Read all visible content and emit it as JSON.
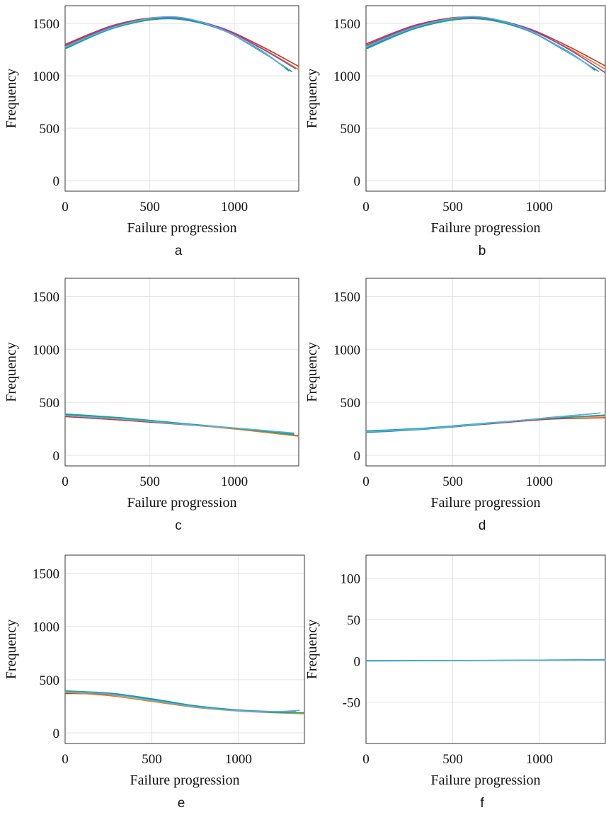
{
  "chart_data": [
    {
      "panel": "a",
      "type": "line",
      "xlabel": "Failure progression",
      "ylabel": "Frequency",
      "caption": "a",
      "xlim": [
        0,
        1380
      ],
      "ylim": [
        -100,
        1670
      ],
      "xticks": [
        0,
        500,
        1000
      ],
      "yticks": [
        0,
        500,
        1000,
        1500
      ],
      "grid": true,
      "series": [
        {
          "color": "#c0392b",
          "x": [
            0,
            300,
            600,
            900,
            1150,
            1380
          ],
          "values": [
            1300,
            1490,
            1560,
            1470,
            1290,
            1090
          ]
        },
        {
          "color": "#e67e22",
          "x": [
            0,
            300,
            600,
            900,
            1150,
            1380
          ],
          "values": [
            1285,
            1478,
            1552,
            1462,
            1275,
            1060
          ]
        },
        {
          "color": "#2e86c1",
          "x": [
            0,
            300,
            620,
            900,
            1150,
            1320
          ],
          "values": [
            1268,
            1470,
            1545,
            1455,
            1250,
            1050
          ]
        },
        {
          "color": "#17a589",
          "x": [
            0,
            300,
            620,
            900,
            1150,
            1340
          ],
          "values": [
            1258,
            1462,
            1548,
            1458,
            1240,
            1040
          ]
        },
        {
          "color": "#8e44ad",
          "x": [
            0,
            300,
            620,
            900,
            1150,
            1360
          ],
          "values": [
            1290,
            1482,
            1558,
            1470,
            1270,
            1070
          ]
        },
        {
          "color": "#5dade2",
          "x": [
            0,
            300,
            620,
            900,
            1150,
            1300
          ],
          "values": [
            1275,
            1472,
            1565,
            1460,
            1245,
            1080
          ]
        }
      ]
    },
    {
      "panel": "b",
      "type": "line",
      "xlabel": "Failure progression",
      "ylabel": "Frequency",
      "caption": "b",
      "xlim": [
        0,
        1380
      ],
      "ylim": [
        -100,
        1670
      ],
      "xticks": [
        0,
        500,
        1000
      ],
      "yticks": [
        0,
        500,
        1000,
        1500
      ],
      "grid": true,
      "series": [
        {
          "color": "#c0392b",
          "x": [
            0,
            300,
            600,
            900,
            1150,
            1380
          ],
          "values": [
            1305,
            1492,
            1562,
            1472,
            1295,
            1095
          ]
        },
        {
          "color": "#e67e22",
          "x": [
            0,
            300,
            600,
            900,
            1150,
            1380
          ],
          "values": [
            1288,
            1480,
            1554,
            1464,
            1278,
            1065
          ]
        },
        {
          "color": "#2e86c1",
          "x": [
            0,
            300,
            620,
            900,
            1150,
            1320
          ],
          "values": [
            1266,
            1468,
            1546,
            1452,
            1248,
            1055
          ]
        },
        {
          "color": "#17a589",
          "x": [
            0,
            300,
            620,
            900,
            1150,
            1340
          ],
          "values": [
            1256,
            1460,
            1548,
            1456,
            1238,
            1045
          ]
        },
        {
          "color": "#8e44ad",
          "x": [
            0,
            300,
            620,
            900,
            1150,
            1380
          ],
          "values": [
            1292,
            1484,
            1560,
            1472,
            1272,
            1030
          ]
        },
        {
          "color": "#5dade2",
          "x": [
            0,
            300,
            620,
            900,
            1150,
            1300
          ],
          "values": [
            1278,
            1474,
            1566,
            1462,
            1244,
            1082
          ]
        }
      ]
    },
    {
      "panel": "c",
      "type": "line",
      "xlabel": "Failure progression",
      "ylabel": "Frequency",
      "caption": "c",
      "xlim": [
        0,
        1380
      ],
      "ylim": [
        -100,
        1670
      ],
      "xticks": [
        0,
        500,
        1000
      ],
      "yticks": [
        0,
        500,
        1000,
        1500
      ],
      "grid": true,
      "series": [
        {
          "color": "#c0392b",
          "x": [
            0,
            350,
            700,
            1050,
            1380
          ],
          "values": [
            365,
            330,
            290,
            245,
            185
          ]
        },
        {
          "color": "#e67e22",
          "x": [
            0,
            350,
            700,
            1050,
            1380
          ],
          "values": [
            380,
            345,
            295,
            240,
            180
          ]
        },
        {
          "color": "#2e86c1",
          "x": [
            0,
            350,
            700,
            1050,
            1350
          ],
          "values": [
            385,
            350,
            300,
            250,
            205
          ]
        },
        {
          "color": "#17a589",
          "x": [
            0,
            350,
            700,
            1050,
            1350
          ],
          "values": [
            390,
            352,
            298,
            248,
            195
          ]
        },
        {
          "color": "#5dade2",
          "x": [
            0,
            350,
            700,
            1050,
            1350
          ],
          "values": [
            375,
            340,
            292,
            252,
            210
          ]
        }
      ]
    },
    {
      "panel": "d",
      "type": "line",
      "xlabel": "Failure progression",
      "ylabel": "Frequency",
      "caption": "d",
      "xlim": [
        0,
        1380
      ],
      "ylim": [
        -100,
        1670
      ],
      "xticks": [
        0,
        500,
        1000
      ],
      "yticks": [
        0,
        500,
        1000,
        1500
      ],
      "grid": true,
      "series": [
        {
          "color": "#c0392b",
          "x": [
            0,
            350,
            700,
            1050,
            1380
          ],
          "values": [
            220,
            250,
            295,
            340,
            355
          ]
        },
        {
          "color": "#e67e22",
          "x": [
            0,
            350,
            700,
            1050,
            1380
          ],
          "values": [
            225,
            255,
            300,
            350,
            370
          ]
        },
        {
          "color": "#2e86c1",
          "x": [
            0,
            350,
            700,
            1050,
            1330
          ],
          "values": [
            215,
            248,
            298,
            355,
            395
          ]
        },
        {
          "color": "#17a589",
          "x": [
            0,
            350,
            700,
            1050,
            1380
          ],
          "values": [
            230,
            258,
            305,
            348,
            380
          ]
        },
        {
          "color": "#5dade2",
          "x": [
            0,
            350,
            700,
            1050,
            1350
          ],
          "values": [
            222,
            252,
            302,
            352,
            400
          ]
        }
      ]
    },
    {
      "panel": "e",
      "type": "line",
      "xlabel": "Failure progression",
      "ylabel": "Frequency",
      "caption": "e",
      "xlim": [
        0,
        1380
      ],
      "ylim": [
        -100,
        1670
      ],
      "xticks": [
        0,
        500,
        1000
      ],
      "yticks": [
        0,
        500,
        1000,
        1500
      ],
      "grid": true,
      "series": [
        {
          "color": "#c0392b",
          "x": [
            0,
            250,
            500,
            750,
            1000,
            1200,
            1380
          ],
          "values": [
            370,
            360,
            310,
            250,
            210,
            195,
            185
          ]
        },
        {
          "color": "#e67e22",
          "x": [
            0,
            250,
            500,
            750,
            1000,
            1200,
            1380
          ],
          "values": [
            380,
            350,
            295,
            240,
            205,
            190,
            180
          ]
        },
        {
          "color": "#2e86c1",
          "x": [
            0,
            250,
            500,
            750,
            1000,
            1200,
            1330
          ],
          "values": [
            390,
            375,
            320,
            255,
            215,
            200,
            205
          ]
        },
        {
          "color": "#17a589",
          "x": [
            0,
            250,
            500,
            750,
            1000,
            1200,
            1380
          ],
          "values": [
            395,
            370,
            315,
            252,
            212,
            192,
            190
          ]
        },
        {
          "color": "#5dade2",
          "x": [
            0,
            250,
            500,
            750,
            1000,
            1200,
            1350
          ],
          "values": [
            385,
            365,
            305,
            245,
            208,
            198,
            212
          ]
        }
      ]
    },
    {
      "panel": "f",
      "type": "line",
      "xlabel": "Failure progression",
      "ylabel": "Frequency",
      "caption": "f",
      "xlim": [
        0,
        1380
      ],
      "ylim": [
        -100,
        128
      ],
      "xticks": [
        0,
        500,
        1000
      ],
      "yticks": [
        -50,
        0,
        50,
        100
      ],
      "grid": true,
      "series": [
        {
          "color": "#2e86c1",
          "x": [
            0,
            700,
            1380
          ],
          "values": [
            0,
            0.5,
            1.5
          ]
        },
        {
          "color": "#17a589",
          "x": [
            0,
            700,
            1380
          ],
          "values": [
            0.3,
            0.6,
            1.2
          ]
        },
        {
          "color": "#5dade2",
          "x": [
            0,
            700,
            1380
          ],
          "values": [
            -0.2,
            0.4,
            1.0
          ]
        }
      ]
    }
  ]
}
